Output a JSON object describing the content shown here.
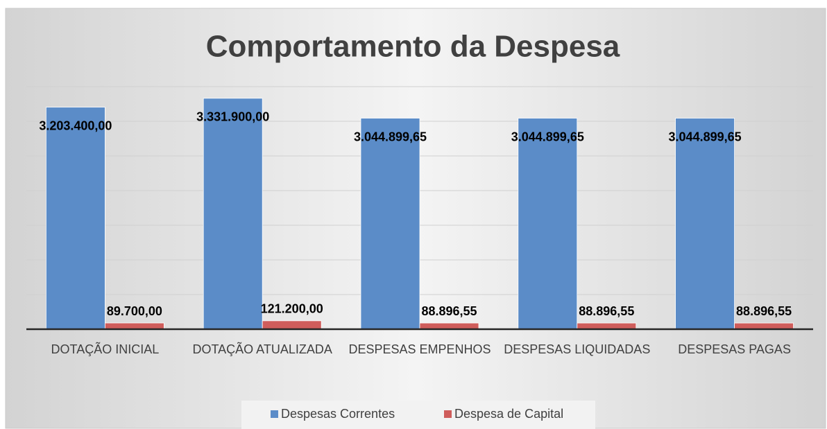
{
  "chart_data": {
    "type": "bar",
    "title": "Comportamento da Despesa",
    "categories": [
      "DOTAÇÃO INICIAL",
      "DOTAÇÃO ATUALIZADA",
      "DESPESAS EMPENHOS",
      "DESPESAS LIQUIDADAS",
      "DESPESAS PAGAS"
    ],
    "series": [
      {
        "name": "Despesas Correntes",
        "color": "#5b8cc8",
        "values": [
          3203400,
          3331900,
          3044899.65,
          3044899.65,
          3044899.65
        ],
        "value_labels": [
          "3.203.400,00",
          "3.331.900,00",
          "3.044.899,65",
          "3.044.899,65",
          "3.044.899,65"
        ]
      },
      {
        "name": "Despesa de Capital",
        "color": "#cf5d5b",
        "values": [
          89700,
          121200,
          88896.55,
          88896.55,
          88896.55
        ],
        "value_labels": [
          "89.700,00",
          "121.200,00",
          "88.896,55",
          "88.896,55",
          "88.896,55"
        ]
      }
    ],
    "ylim": [
      0,
      3500000
    ],
    "yticks": [
      0,
      500000,
      1000000,
      1500000,
      2000000,
      2500000,
      3000000,
      3500000
    ],
    "grid": true,
    "legend": "bottom"
  }
}
